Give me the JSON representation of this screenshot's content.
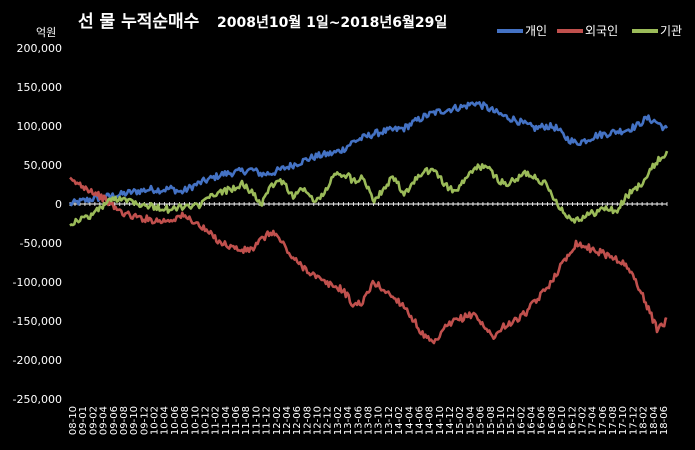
{
  "chart_data": {
    "type": "line",
    "title": "선 물 누적순매수",
    "subtitle": "2008년10월 1일~2018년6월29일",
    "ylabel": "억원",
    "xlabel": "",
    "ylim": [
      -250000,
      200000
    ],
    "yticks": [
      200000,
      150000,
      100000,
      50000,
      0,
      -50000,
      -100000,
      -150000,
      -200000,
      -250000
    ],
    "ytick_labels": [
      "200,000",
      "150,000",
      "100,000",
      "50,000",
      "0",
      "-50,000",
      "-100,000",
      "-150,000",
      "-200,000",
      "-250,000"
    ],
    "x_tick_labels": [
      "08-10",
      "09-01",
      "09-02",
      "09-04",
      "09-06",
      "09-08",
      "09-10",
      "09-12",
      "10-02",
      "10-04",
      "10-06",
      "10-08",
      "10-10",
      "10-12",
      "11-02",
      "11-04",
      "11-06",
      "11-08",
      "11-10",
      "11-12",
      "12-02",
      "12-04",
      "12-06",
      "12-08",
      "12-10",
      "12-12",
      "13-02",
      "13-04",
      "13-06",
      "13-08",
      "13-10",
      "13-12",
      "14-02",
      "14-04",
      "14-06",
      "14-08",
      "14-10",
      "14-12",
      "15-02",
      "15-04",
      "15-06",
      "15-08",
      "15-10",
      "15-12",
      "16-02",
      "16-04",
      "16-06",
      "16-08",
      "16-10",
      "16-12",
      "17-02",
      "17-04",
      "17-06",
      "17-08",
      "17-10",
      "17-12",
      "18-02",
      "18-04",
      "18-06"
    ],
    "grid": false,
    "legend_position": "top-right",
    "series": [
      {
        "name": "개인",
        "color": "#4472c4",
        "values": [
          0,
          3000,
          6000,
          8000,
          10000,
          12000,
          15000,
          17000,
          19000,
          18000,
          20000,
          15000,
          22000,
          28000,
          33000,
          38000,
          40000,
          42000,
          44000,
          38000,
          40000,
          45000,
          50000,
          55000,
          60000,
          63000,
          65000,
          70000,
          80000,
          85000,
          90000,
          93000,
          95000,
          97000,
          105000,
          112000,
          117000,
          120000,
          123000,
          125000,
          130000,
          125000,
          118000,
          112000,
          108000,
          102000,
          97000,
          100000,
          98000,
          85000,
          78000,
          82000,
          88000,
          90000,
          93000,
          95000,
          100000,
          110000,
          105000,
          95000
        ]
      },
      {
        "name": "외국인",
        "color": "#c0504d",
        "values": [
          30000,
          25000,
          18000,
          10000,
          0,
          -10000,
          -15000,
          -18000,
          -20000,
          -22000,
          -20000,
          -15000,
          -20000,
          -30000,
          -40000,
          -50000,
          -55000,
          -60000,
          -58000,
          -45000,
          -35000,
          -50000,
          -70000,
          -80000,
          -90000,
          -100000,
          -105000,
          -110000,
          -130000,
          -125000,
          -100000,
          -110000,
          -120000,
          -130000,
          -150000,
          -170000,
          -180000,
          -160000,
          -150000,
          -145000,
          -140000,
          -160000,
          -170000,
          -155000,
          -150000,
          -140000,
          -125000,
          -110000,
          -90000,
          -70000,
          -50000,
          -55000,
          -60000,
          -65000,
          -70000,
          -80000,
          -100000,
          -130000,
          -160000,
          -150000
        ]
      },
      {
        "name": "기관",
        "color": "#9bbb59",
        "values": [
          -25000,
          -20000,
          -15000,
          -5000,
          5000,
          8000,
          5000,
          0,
          -3000,
          -5000,
          -8000,
          -3000,
          -5000,
          0,
          10000,
          15000,
          20000,
          25000,
          15000,
          0,
          25000,
          30000,
          10000,
          20000,
          5000,
          10000,
          35000,
          40000,
          30000,
          35000,
          5000,
          20000,
          35000,
          10000,
          30000,
          40000,
          45000,
          25000,
          15000,
          30000,
          45000,
          50000,
          35000,
          25000,
          30000,
          40000,
          35000,
          25000,
          5000,
          -15000,
          -20000,
          -15000,
          -10000,
          -5000,
          -10000,
          10000,
          20000,
          35000,
          55000,
          65000
        ]
      }
    ]
  }
}
